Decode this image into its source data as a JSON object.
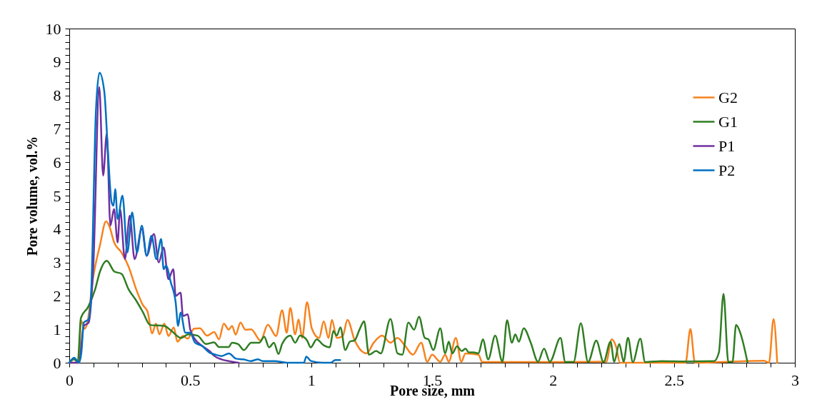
{
  "chart_data": {
    "type": "line",
    "xlabel": "Pore size, mm",
    "ylabel": "Pore volume, vol.%",
    "legend": "top right",
    "xlim": [
      0,
      3
    ],
    "ylim": [
      0,
      10
    ],
    "xticks": [
      0,
      {
        "value": 0.1,
        "label": null
      },
      {
        "value": 0.2,
        "label": null
      },
      {
        "value": 0.3,
        "label": null
      },
      {
        "value": 0.4,
        "label": null
      },
      {
        "value": 0.5,
        "label": "0.5"
      },
      {
        "value": 0.6,
        "label": null
      },
      {
        "value": 0.7,
        "label": null
      },
      {
        "value": 0.8,
        "label": null
      },
      {
        "value": 0.9,
        "label": null
      },
      1,
      {
        "value": 1.1,
        "label": null
      },
      {
        "value": 1.2,
        "label": null
      },
      {
        "value": 1.3,
        "label": null
      },
      {
        "value": 1.4,
        "label": null
      },
      {
        "value": 1.5,
        "label": "1.5"
      },
      {
        "value": 1.6,
        "label": null
      },
      {
        "value": 1.7,
        "label": null
      },
      {
        "value": 1.8,
        "label": null
      },
      {
        "value": 1.9,
        "label": null
      },
      2,
      {
        "value": 2.1,
        "label": null
      },
      {
        "value": 2.2,
        "label": null
      },
      {
        "value": 2.3,
        "label": null
      },
      {
        "value": 2.4,
        "label": null
      },
      {
        "value": 2.5,
        "label": "2.5"
      },
      {
        "value": 2.6,
        "label": null
      },
      {
        "value": 2.7,
        "label": null
      },
      {
        "value": 2.8,
        "label": null
      },
      {
        "value": 2.9,
        "label": null
      },
      3
    ],
    "yticks": [
      0,
      {
        "value": 0.2,
        "label": null
      },
      {
        "value": 0.4,
        "label": null
      },
      {
        "value": 0.6,
        "label": null
      },
      {
        "value": 0.8,
        "label": null
      },
      1,
      {
        "value": 1.2,
        "label": null
      },
      {
        "value": 1.4,
        "label": null
      },
      {
        "value": 1.6,
        "label": null
      },
      {
        "value": 1.8,
        "label": null
      },
      2,
      {
        "value": 2.2,
        "label": null
      },
      {
        "value": 2.4,
        "label": null
      },
      {
        "value": 2.6,
        "label": null
      },
      {
        "value": 2.8,
        "label": null
      },
      3,
      {
        "value": 3.2,
        "label": null
      },
      {
        "value": 3.4,
        "label": null
      },
      {
        "value": 3.6,
        "label": null
      },
      {
        "value": 3.8,
        "label": null
      },
      4,
      {
        "value": 4.2,
        "label": null
      },
      {
        "value": 4.4,
        "label": null
      },
      {
        "value": 4.6,
        "label": null
      },
      {
        "value": 4.8,
        "label": null
      },
      5,
      {
        "value": 5.2,
        "label": null
      },
      {
        "value": 5.4,
        "label": null
      },
      {
        "value": 5.6,
        "label": null
      },
      {
        "value": 5.8,
        "label": null
      },
      6,
      {
        "value": 6.2,
        "label": null
      },
      {
        "value": 6.4,
        "label": null
      },
      {
        "value": 6.6,
        "label": null
      },
      {
        "value": 6.8,
        "label": null
      },
      7,
      {
        "value": 7.2,
        "label": null
      },
      {
        "value": 7.4,
        "label": null
      },
      {
        "value": 7.6,
        "label": null
      },
      {
        "value": 7.8,
        "label": null
      },
      8,
      {
        "value": 8.2,
        "label": null
      },
      {
        "value": 8.4,
        "label": null
      },
      {
        "value": 8.6,
        "label": null
      },
      {
        "value": 8.8,
        "label": null
      },
      9,
      {
        "value": 9.2,
        "label": null
      },
      {
        "value": 9.4,
        "label": null
      },
      {
        "value": 9.6,
        "label": null
      },
      {
        "value": 9.8,
        "label": null
      },
      10
    ],
    "series": [
      {
        "name": "G2",
        "color": "#f7821e",
        "x": [
          0,
          0.04,
          0.048,
          0.063,
          0.075,
          0.098,
          0.127,
          0.152,
          0.165,
          0.186,
          0.216,
          0.245,
          0.275,
          0.304,
          0.324,
          0.343,
          0.358,
          0.373,
          0.393,
          0.41,
          0.432,
          0.447,
          0.47,
          0.49,
          0.516,
          0.54,
          0.57,
          0.599,
          0.619,
          0.639,
          0.659,
          0.673,
          0.688,
          0.708,
          0.728,
          0.752,
          0.791,
          0.821,
          0.855,
          0.88,
          0.899,
          0.914,
          0.934,
          0.948,
          0.963,
          0.983,
          1.003,
          1.033,
          1.052,
          1.072,
          1.086,
          1.106,
          1.131,
          1.15,
          1.18,
          1.229,
          1.259,
          1.293,
          1.328,
          1.357,
          1.387,
          1.421,
          1.455,
          1.48,
          1.5,
          1.534,
          1.554,
          1.569,
          1.598,
          1.621,
          1.638,
          1.692,
          1.707,
          2.0,
          2.22,
          2.243,
          2.26,
          2.277,
          2.548,
          2.568,
          2.587,
          2.873,
          2.893,
          2.912,
          2.927
        ],
        "values": [
          0,
          0,
          1.27,
          1.02,
          1.2,
          2.52,
          3.52,
          4.23,
          4.1,
          3.59,
          3.3,
          2.88,
          2.23,
          1.73,
          1.52,
          0.88,
          1.17,
          0.85,
          1.17,
          0.8,
          1.06,
          0.63,
          0.8,
          0.72,
          1.02,
          1.03,
          0.81,
          0.92,
          0.7,
          1.17,
          0.99,
          1.1,
          0.84,
          1.2,
          0.99,
          1.0,
          0.66,
          1.14,
          0.8,
          1.57,
          0.9,
          1.64,
          0.85,
          1.3,
          0.74,
          1.81,
          1.02,
          0.74,
          1.24,
          0.74,
          1.28,
          0.74,
          0.8,
          1.28,
          0.67,
          0.28,
          0.6,
          0.81,
          0.6,
          0.74,
          0.52,
          0.24,
          0.6,
          0.03,
          0.24,
          0.03,
          0.24,
          0.03,
          0.74,
          0.03,
          0.28,
          0.24,
          0.02,
          0.02,
          0.03,
          0.7,
          0.5,
          0,
          0,
          1.01,
          0,
          0.06,
          0,
          1.31,
          0
        ]
      },
      {
        "name": "G1",
        "color": "#2f7d22",
        "x": [
          0,
          0.02,
          0.035,
          0.048,
          0.078,
          0.107,
          0.127,
          0.155,
          0.186,
          0.216,
          0.245,
          0.275,
          0.304,
          0.334,
          0.393,
          0.423,
          0.462,
          0.492,
          0.531,
          0.565,
          0.599,
          0.619,
          0.659,
          0.673,
          0.698,
          0.722,
          0.752,
          0.786,
          0.806,
          0.826,
          0.846,
          0.865,
          0.88,
          0.914,
          0.934,
          0.954,
          0.983,
          0.998,
          1.023,
          1.052,
          1.077,
          1.092,
          1.106,
          1.121,
          1.141,
          1.16,
          1.18,
          1.2,
          1.219,
          1.239,
          1.269,
          1.288,
          1.328,
          1.357,
          1.377,
          1.402,
          1.426,
          1.446,
          1.47,
          1.485,
          1.505,
          1.534,
          1.554,
          1.569,
          1.584,
          1.603,
          1.623,
          1.638,
          1.652,
          1.672,
          1.692,
          1.71,
          1.732,
          1.761,
          1.791,
          1.81,
          1.83,
          1.844,
          1.859,
          1.879,
          1.908,
          1.938,
          1.963,
          1.987,
          2.031,
          2.051,
          2.085,
          2.115,
          2.145,
          2.179,
          2.209,
          2.238,
          2.253,
          2.274,
          2.292,
          2.31,
          2.33,
          2.361,
          2.381,
          2.45,
          2.548,
          2.666,
          2.686,
          2.705,
          2.725,
          2.742,
          2.757,
          2.775,
          2.804
        ],
        "values": [
          0,
          0.1,
          0.02,
          1.34,
          1.67,
          2.2,
          2.73,
          3.05,
          2.73,
          2.66,
          2.2,
          1.88,
          1.52,
          1.13,
          1.1,
          0.95,
          0.74,
          0.85,
          0.81,
          0.56,
          0.61,
          0.47,
          0.47,
          0.6,
          0.56,
          0.38,
          0.6,
          0.6,
          0.78,
          0.46,
          0.6,
          0.26,
          0.56,
          0.81,
          0.6,
          0.81,
          0.67,
          0.46,
          0.7,
          0.52,
          0.46,
          0.95,
          0.81,
          1.06,
          0.38,
          0.63,
          0.67,
          0.99,
          1.24,
          0.24,
          0.35,
          0.28,
          1.31,
          0.28,
          0.24,
          1.2,
          0.99,
          1.38,
          0.74,
          0.7,
          0.38,
          1.03,
          0.28,
          0.63,
          0.28,
          0.49,
          0.35,
          0.42,
          0.31,
          0.31,
          0.28,
          0.7,
          0.1,
          0.81,
          0.03,
          1.27,
          0.6,
          0.85,
          0.63,
          1.03,
          0.6,
          0.03,
          0.42,
          0.03,
          0.74,
          0.02,
          0.02,
          1.18,
          0.02,
          0.66,
          0.02,
          0.63,
          0.03,
          0.56,
          0.03,
          0.75,
          0.02,
          0.72,
          0.02,
          0.05,
          0.04,
          0.05,
          0.31,
          2.06,
          0.02,
          0.02,
          1.13,
          0.88,
          0.02
        ]
      },
      {
        "name": "P1",
        "color": "#7030a0",
        "x": [
          0,
          0.04,
          0.06,
          0.08,
          0.1,
          0.124,
          0.14,
          0.155,
          0.17,
          0.185,
          0.2,
          0.21,
          0.23,
          0.25,
          0.27,
          0.3,
          0.32,
          0.35,
          0.37,
          0.39,
          0.41,
          0.43,
          0.44,
          0.46,
          0.47,
          0.49,
          0.5,
          0.52,
          0.55,
          0.58,
          0.6,
          0.63,
          0.66,
          0.7
        ],
        "values": [
          0,
          0,
          1.1,
          1.2,
          3,
          8.25,
          5.6,
          6.85,
          4.1,
          4.6,
          3.6,
          4.6,
          3.1,
          4.4,
          3.1,
          4,
          3.2,
          3.85,
          3,
          3.45,
          2.5,
          2.8,
          2,
          2.1,
          1.4,
          1.45,
          1,
          0.7,
          0.5,
          0.35,
          0.2,
          0.1,
          0.05,
          0
        ]
      },
      {
        "name": "P2",
        "color": "#0070c0",
        "x": [
          0,
          0.02,
          0.04,
          0.05,
          0.06,
          0.08,
          0.09,
          0.11,
          0.125,
          0.145,
          0.16,
          0.175,
          0.183,
          0.19,
          0.2,
          0.22,
          0.24,
          0.26,
          0.28,
          0.3,
          0.32,
          0.34,
          0.36,
          0.38,
          0.39,
          0.4,
          0.42,
          0.44,
          0.45,
          0.46,
          0.48,
          0.5,
          0.52,
          0.55,
          0.58,
          0.6,
          0.63,
          0.66,
          0.69,
          0.72,
          0.75,
          0.78,
          0.8,
          0.85,
          0.9,
          0.97,
          0.98,
          1.0,
          1.05,
          1.08,
          1.1,
          1.12
        ],
        "values": [
          0,
          0.15,
          0,
          0.3,
          1.2,
          1.3,
          2,
          7.5,
          8.68,
          8.1,
          6.3,
          4.8,
          4.7,
          5.2,
          4.3,
          5,
          3.3,
          4.5,
          3.3,
          4.1,
          3.2,
          3.8,
          3.1,
          3.7,
          2.8,
          2.9,
          2.4,
          1.8,
          1.1,
          1.5,
          0.9,
          0.9,
          0.6,
          0.5,
          0.3,
          0.25,
          0.2,
          0.28,
          0.12,
          0.1,
          0.05,
          0.1,
          0.05,
          0.05,
          0,
          0,
          0.18,
          0.05,
          0,
          0,
          0.08,
          0.08
        ]
      }
    ]
  }
}
